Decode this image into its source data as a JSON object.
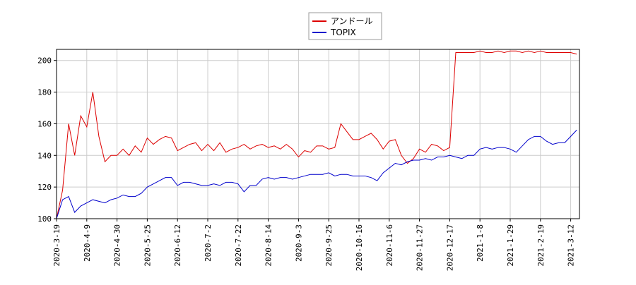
{
  "chart_data": {
    "type": "line",
    "categories": [
      "2020-3-19",
      null,
      null,
      null,
      null,
      "2020-4-9",
      null,
      null,
      null,
      null,
      "2020-4-30",
      null,
      null,
      null,
      null,
      "2020-5-25",
      null,
      null,
      null,
      null,
      "2020-6-12",
      null,
      null,
      null,
      null,
      "2020-7-2",
      null,
      null,
      null,
      null,
      "2020-7-22",
      null,
      null,
      null,
      null,
      "2020-8-14",
      null,
      null,
      null,
      null,
      "2020-9-3",
      null,
      null,
      null,
      null,
      "2020-9-25",
      null,
      null,
      null,
      null,
      "2020-10-16",
      null,
      null,
      null,
      null,
      "2020-11-6",
      null,
      null,
      null,
      null,
      "2020-11-27",
      null,
      null,
      null,
      null,
      "2020-12-17",
      null,
      null,
      null,
      null,
      "2021-1-8",
      null,
      null,
      null,
      null,
      "2021-1-29",
      null,
      null,
      null,
      null,
      "2021-2-19",
      null,
      null,
      null,
      null,
      "2021-3-12",
      null
    ],
    "series": [
      {
        "name": "アンドール",
        "color": "#dd0000",
        "values": [
          100,
          118,
          160,
          140,
          165,
          158,
          180,
          152,
          136,
          140,
          140,
          144,
          140,
          146,
          142,
          151,
          147,
          150,
          152,
          151,
          143,
          145,
          147,
          148,
          143,
          147,
          143,
          148,
          142,
          144,
          145,
          147,
          144,
          146,
          147,
          145,
          146,
          144,
          147,
          144,
          139,
          143,
          142,
          146,
          146,
          144,
          145,
          160,
          155,
          150,
          150,
          152,
          154,
          150,
          144,
          149,
          150,
          140,
          135,
          138,
          144,
          142,
          147,
          146,
          143,
          145,
          205,
          205,
          205,
          205,
          206,
          205,
          205,
          206,
          205,
          206,
          206,
          205,
          206,
          205,
          206,
          205,
          205,
          205,
          205,
          205,
          204
        ]
      },
      {
        "name": "TOPIX",
        "color": "#0000cc",
        "values": [
          100,
          112,
          114,
          104,
          108,
          110,
          112,
          111,
          110,
          112,
          113,
          115,
          114,
          114,
          116,
          120,
          122,
          124,
          126,
          126,
          121,
          123,
          123,
          122,
          121,
          121,
          122,
          121,
          123,
          123,
          122,
          117,
          121,
          121,
          125,
          126,
          125,
          126,
          126,
          125,
          126,
          127,
          128,
          128,
          128,
          129,
          127,
          128,
          128,
          127,
          127,
          127,
          126,
          124,
          129,
          132,
          135,
          134,
          136,
          137,
          137,
          138,
          137,
          139,
          139,
          140,
          139,
          138,
          140,
          140,
          144,
          145,
          144,
          145,
          145,
          144,
          142,
          146,
          150,
          152,
          152,
          149,
          147,
          148,
          148,
          152,
          156
        ]
      }
    ],
    "ylim": [
      100,
      207
    ],
    "yticks": [
      100,
      120,
      140,
      160,
      180,
      200
    ],
    "grid": true
  }
}
